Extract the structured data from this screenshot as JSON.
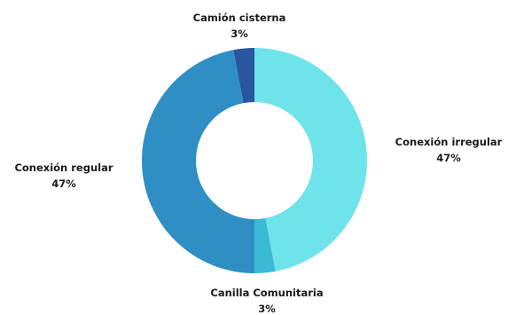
{
  "chart_data": {
    "type": "pie",
    "variant": "donut",
    "title": "",
    "slices": [
      {
        "label": "Conexión irregular",
        "value": 47,
        "value_label": "47%",
        "color": "#6ee3ea"
      },
      {
        "label": "Canilla Comunitaria",
        "value": 3,
        "value_label": "3%",
        "color": "#3bbad6"
      },
      {
        "label": "Conexión regular",
        "value": 47,
        "value_label": "47%",
        "color": "#2f8fc4"
      },
      {
        "label": "Camión cisterna",
        "value": 3,
        "value_label": "3%",
        "color": "#2a55a0"
      }
    ]
  }
}
